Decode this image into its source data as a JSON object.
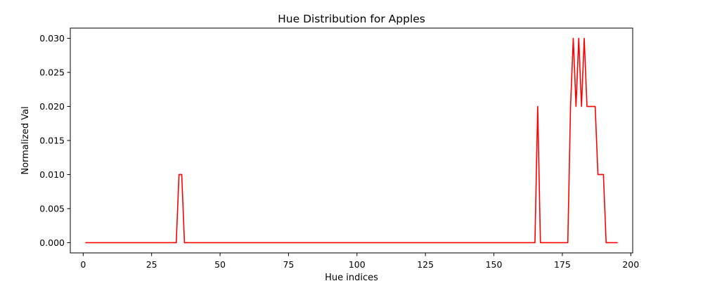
{
  "chart_data": {
    "type": "line",
    "title": "Hue Distribution for Apples",
    "xlabel": "Hue indices",
    "ylabel": "Normalized Val",
    "xlim": [
      -4.7,
      200.7
    ],
    "ylim": [
      -0.0015,
      0.0315
    ],
    "xticks": [
      0,
      25,
      50,
      75,
      100,
      125,
      150,
      175,
      200
    ],
    "yticks": [
      0.0,
      0.005,
      0.01,
      0.015,
      0.02,
      0.025,
      0.03
    ],
    "ytick_labels": [
      "0.000",
      "0.005",
      "0.010",
      "0.015",
      "0.020",
      "0.025",
      "0.030"
    ],
    "grid": false,
    "series": [
      {
        "color": "#ff0000",
        "x": [
          1,
          34,
          35,
          36,
          37,
          165,
          166,
          167,
          177,
          178,
          179,
          180,
          181,
          182,
          183,
          184,
          187,
          188,
          190,
          191,
          195
        ],
        "y": [
          0.0,
          0.0,
          0.01,
          0.01,
          0.0,
          0.0,
          0.02,
          0.0,
          0.0,
          0.02,
          0.03,
          0.02,
          0.03,
          0.02,
          0.03,
          0.02,
          0.02,
          0.01,
          0.01,
          0.0,
          0.0
        ]
      }
    ]
  }
}
